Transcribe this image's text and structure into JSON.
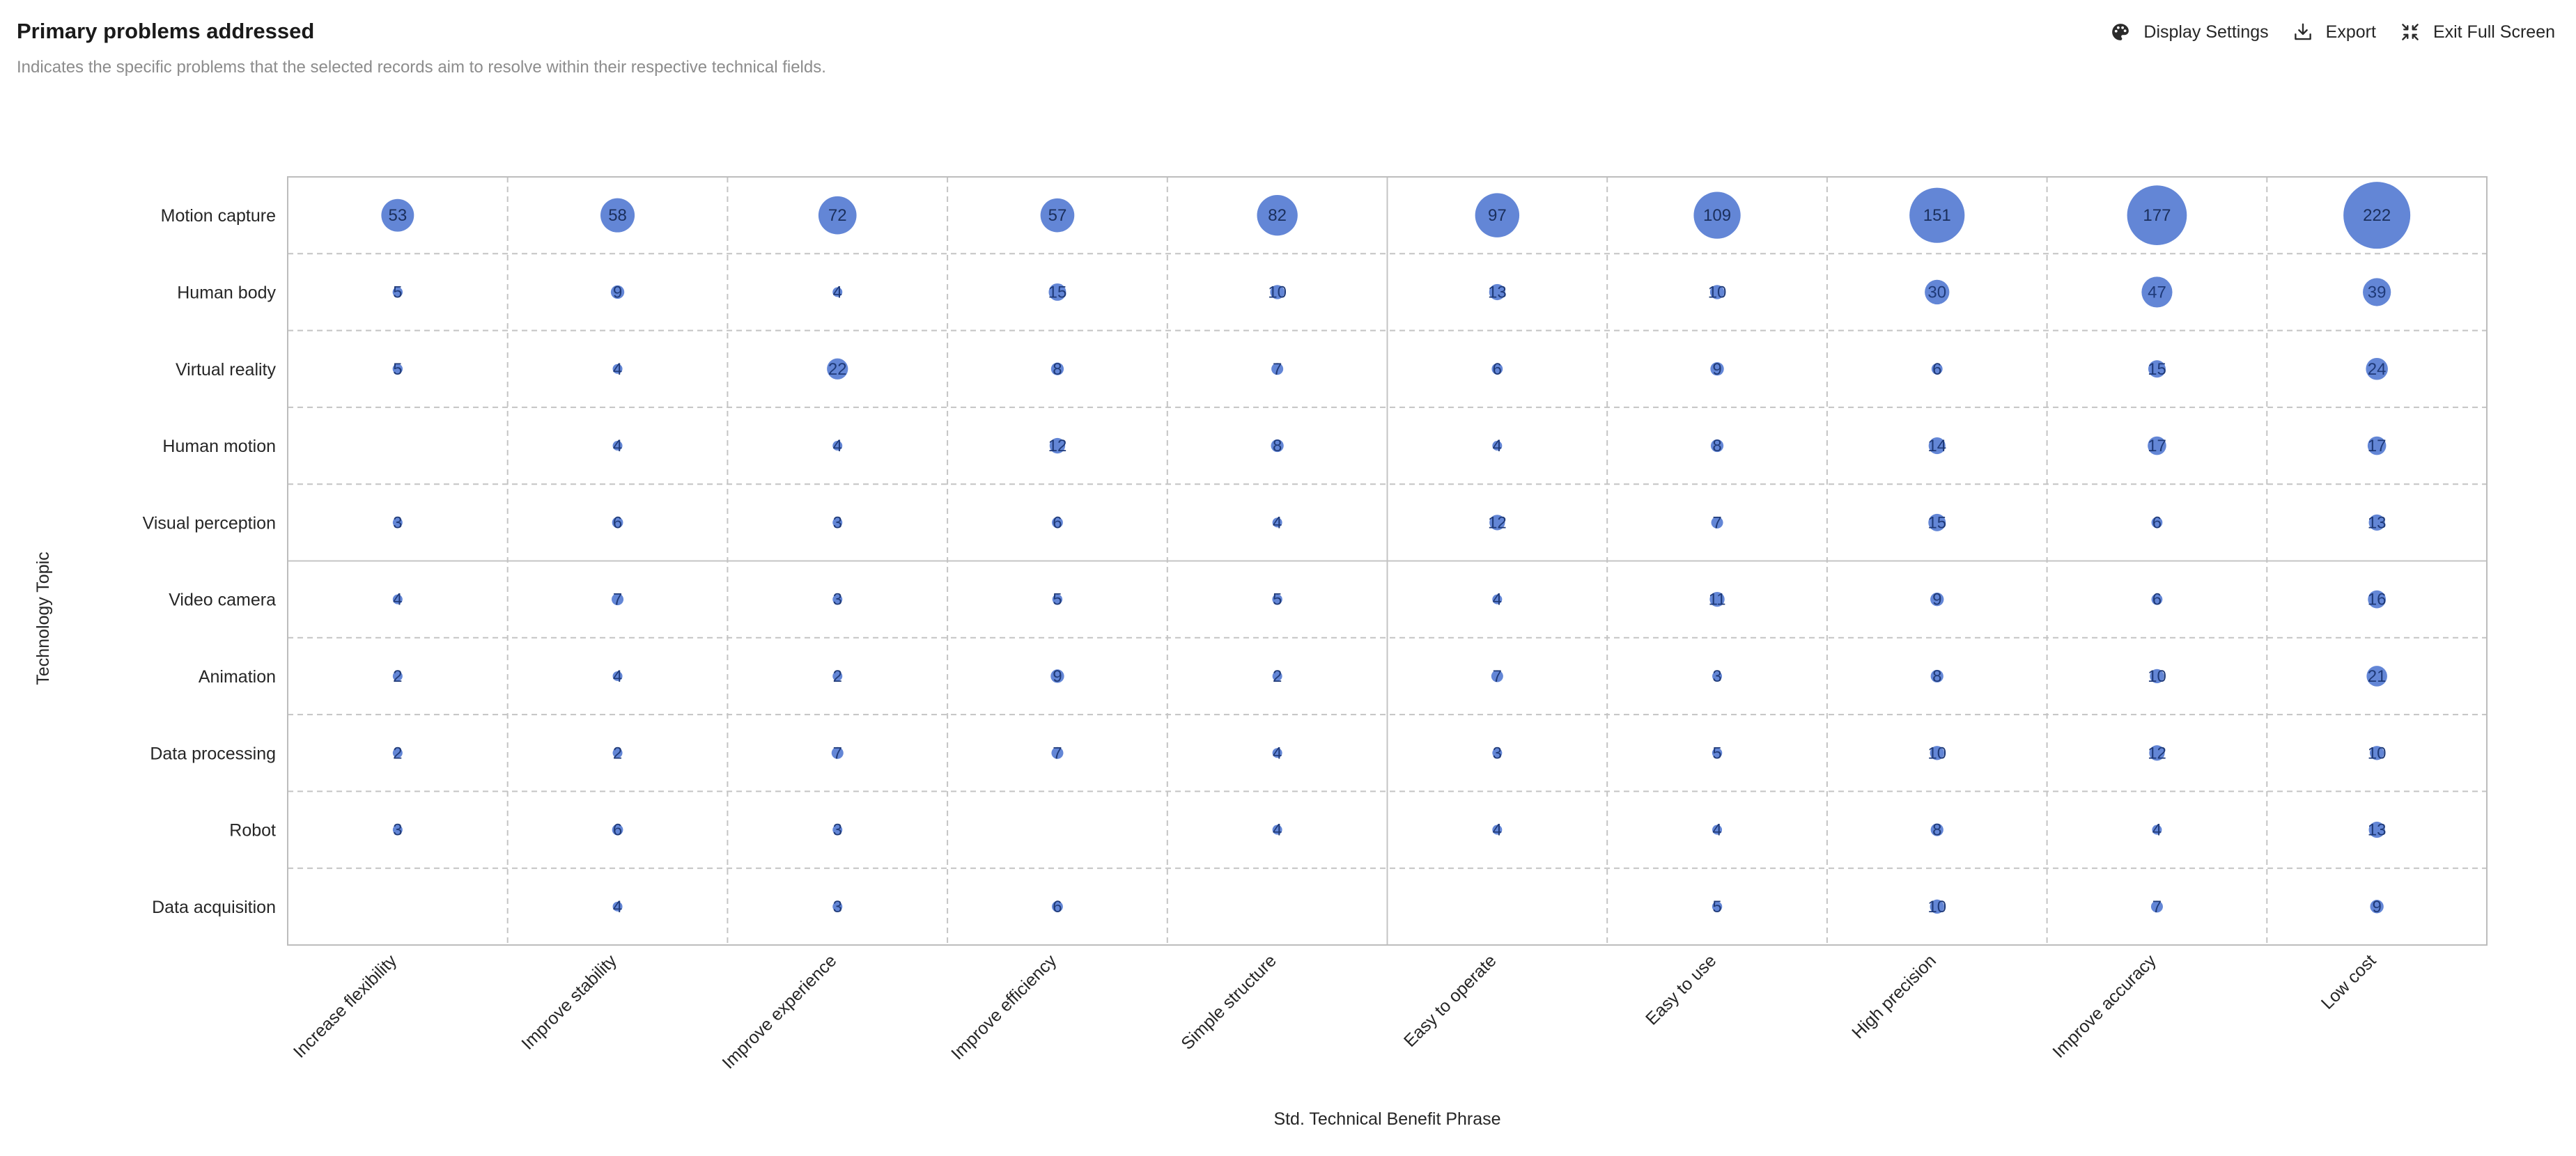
{
  "header": {
    "title": "Primary problems addressed",
    "subtitle": "Indicates the specific problems that the selected records aim to resolve within their respective technical fields."
  },
  "toolbar": {
    "display_settings_label": "Display Settings",
    "display_settings_icon": "palette-icon",
    "export_label": "Export",
    "export_icon": "download-icon",
    "exit_fullscreen_label": "Exit Full Screen",
    "exit_fullscreen_icon": "exit-fullscreen-icon"
  },
  "chart_data": {
    "type": "bubble-matrix",
    "xlabel": "Std. Technical Benefit Phrase",
    "ylabel": "Technology Topic",
    "x_categories": [
      "Increase flexibility",
      "Improve stability",
      "Improve experience",
      "Improve efficiency",
      "Simple structure",
      "Easy to operate",
      "Easy to use",
      "High precision",
      "Improve accuracy",
      "Low cost"
    ],
    "y_categories": [
      "Motion capture",
      "Human body",
      "Virtual reality",
      "Human motion",
      "Visual perception",
      "Video camera",
      "Animation",
      "Data processing",
      "Robot",
      "Data acquisition"
    ],
    "values": [
      [
        53,
        58,
        72,
        57,
        82,
        97,
        109,
        151,
        177,
        222
      ],
      [
        5,
        9,
        4,
        15,
        10,
        13,
        10,
        30,
        47,
        39
      ],
      [
        5,
        4,
        22,
        8,
        7,
        6,
        9,
        6,
        15,
        24
      ],
      [
        null,
        4,
        4,
        12,
        8,
        4,
        8,
        14,
        17,
        17
      ],
      [
        3,
        6,
        3,
        6,
        4,
        12,
        7,
        15,
        6,
        13
      ],
      [
        4,
        7,
        3,
        5,
        5,
        4,
        11,
        9,
        6,
        16
      ],
      [
        2,
        4,
        2,
        9,
        2,
        7,
        3,
        8,
        10,
        21
      ],
      [
        2,
        2,
        7,
        7,
        4,
        3,
        5,
        10,
        12,
        10
      ],
      [
        3,
        6,
        3,
        null,
        4,
        4,
        4,
        8,
        4,
        13
      ],
      [
        null,
        4,
        3,
        6,
        null,
        null,
        5,
        10,
        7,
        9
      ]
    ],
    "bubble_color": "#5b7fd4",
    "label_color": "#1f3a78",
    "grid_style": "dashed"
  }
}
